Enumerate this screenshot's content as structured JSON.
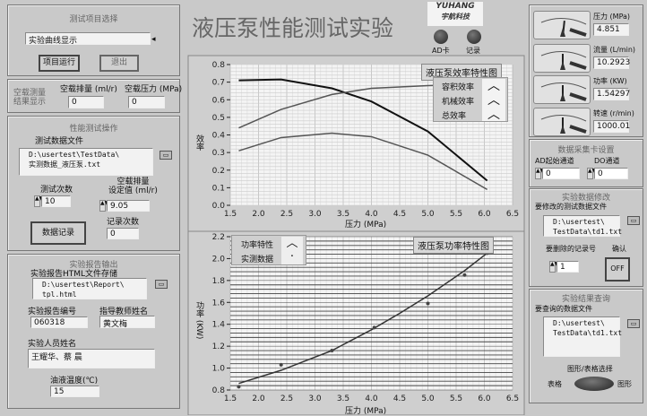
{
  "header": {
    "title": "液压泵性能测试实验",
    "logo_text": "YUHANG",
    "logo_sub": "宇航科技",
    "leds": [
      {
        "label": "AD卡"
      },
      {
        "label": "记录"
      }
    ]
  },
  "left": {
    "project": {
      "title": "测试项目选择",
      "selected": "实验曲线显示",
      "run_label": "项目运行",
      "exit_label": "退出"
    },
    "noload": {
      "title": "空载测量\n结果显示",
      "disp_label": "空载排量 (ml/r)",
      "press_label": "空载压力 (MPa)",
      "disp_value": "0",
      "press_value": "0"
    },
    "perf": {
      "title": "性能测试操作",
      "file_label": "测试数据文件",
      "file_path": "D:\\usertest\\TestData\\\n实测数据_液压泵.txt",
      "count_label": "测试次数",
      "count_value": "10",
      "setdisp_label": "空载排量\n设定值 (ml/r)",
      "setdisp_value": "9.05",
      "record_count_label": "记录次数",
      "record_count_value": "0",
      "record_button": "数据记录"
    },
    "report": {
      "title": "实验报告输出",
      "html_label": "实验报告HTML文件存储",
      "html_path": "D:\\usertest\\Report\\\ntpl.html",
      "number_label": "实验报告编号",
      "number_value": "060318",
      "teacher_label": "指导教师姓名",
      "teacher_value": "黄文梅",
      "staff_label": "实验人员姓名",
      "staff_value": "王耀华、蔡 晨",
      "temp_label": "油液温度(℃)",
      "temp_value": "15"
    }
  },
  "right": {
    "gauges": [
      {
        "label": "压力 (MPa)",
        "value": "4.851",
        "fraction": 0.55
      },
      {
        "label": "流量 (L/min)",
        "value": "10.2923",
        "fraction": 0.5
      },
      {
        "label": "功率 (KW)",
        "value": "1.54297",
        "fraction": 0.5
      },
      {
        "label": "转速 (r/min)",
        "value": "1000.01",
        "fraction": 0.5
      }
    ],
    "daq": {
      "title": "数据采集卡设置",
      "ad_label": "AD起始通道",
      "ad_value": "0",
      "do_label": "DO通道",
      "do_value": "0"
    },
    "modify": {
      "title": "实验数据修改",
      "file_label": "要修改的测试数据文件",
      "file_path": "D:\\usertest\\\nTestData\\td1.txt",
      "delete_label": "要删除的记录号",
      "delete_value": "1",
      "confirm_label": "确认",
      "confirm_button": "OFF"
    },
    "query": {
      "title": "实验结果查询",
      "file_label": "要查询的数据文件",
      "file_path": "D:\\usertest\\\nTestData\\td1.txt",
      "toggle_label": "图形/表格选择",
      "table_label": "表格",
      "graph_label": "图形"
    }
  },
  "chart_data": [
    {
      "type": "line",
      "title": "液压泵效率特性图",
      "xlabel": "压力 (MPa)",
      "ylabel": "效率",
      "xlim": [
        1.5,
        6.5
      ],
      "ylim": [
        0,
        0.8
      ],
      "xticks": [
        "1.5",
        "2.0",
        "2.5",
        "3.0",
        "3.5",
        "4.0",
        "4.5",
        "5.0",
        "5.5",
        "6.0",
        "6.5"
      ],
      "yticks": [
        "0.0",
        "0.1",
        "0.2",
        "0.3",
        "0.4",
        "0.5",
        "0.6",
        "0.7",
        "0.8"
      ],
      "grid": true,
      "legend": "top-right",
      "series": [
        {
          "name": "容积效率",
          "color": "#111111",
          "x": [
            1.65,
            2.4,
            3.3,
            4.0,
            5.0,
            6.05
          ],
          "y": [
            0.71,
            0.715,
            0.665,
            0.59,
            0.42,
            0.14
          ]
        },
        {
          "name": "机械效率",
          "color": "#555555",
          "x": [
            1.65,
            2.4,
            3.3,
            4.0,
            5.0,
            6.05
          ],
          "y": [
            0.44,
            0.545,
            0.63,
            0.665,
            0.68,
            0.69
          ]
        },
        {
          "name": "总效率",
          "color": "#555555",
          "x": [
            1.65,
            2.4,
            3.3,
            4.0,
            5.0,
            6.05
          ],
          "y": [
            0.31,
            0.385,
            0.41,
            0.39,
            0.285,
            0.09
          ]
        }
      ]
    },
    {
      "type": "line",
      "title": "液压泵功率特性图",
      "xlabel": "压力 (MPa)",
      "ylabel": "功率 (KW)",
      "xlim": [
        1.5,
        6.5
      ],
      "ylim": [
        0.8,
        2.2
      ],
      "xticks": [
        "1.5",
        "2.0",
        "2.5",
        "3.0",
        "3.5",
        "4.0",
        "4.5",
        "5.0",
        "5.5",
        "6.0",
        "6.5"
      ],
      "yticks": [
        "0.8",
        "1.0",
        "1.2",
        "1.4",
        "1.6",
        "1.8",
        "2.0",
        "2.2"
      ],
      "grid": true,
      "legend": "top-left",
      "series": [
        {
          "name": "功率特性",
          "color": "#333333",
          "x": [
            1.65,
            2.4,
            3.0,
            3.3,
            4.0,
            4.5,
            5.0,
            5.65,
            6.05
          ],
          "y": [
            0.86,
            0.98,
            1.1,
            1.16,
            1.35,
            1.5,
            1.66,
            1.89,
            2.05
          ]
        },
        {
          "name": "实测数据",
          "color": "#444444",
          "marker": "dot",
          "x": [
            1.65,
            2.4,
            3.3,
            4.05,
            5.0,
            5.65,
            5.9,
            6.05
          ],
          "y": [
            0.83,
            1.03,
            1.16,
            1.37,
            1.59,
            1.85,
            2.06,
            2.05
          ]
        }
      ]
    }
  ]
}
